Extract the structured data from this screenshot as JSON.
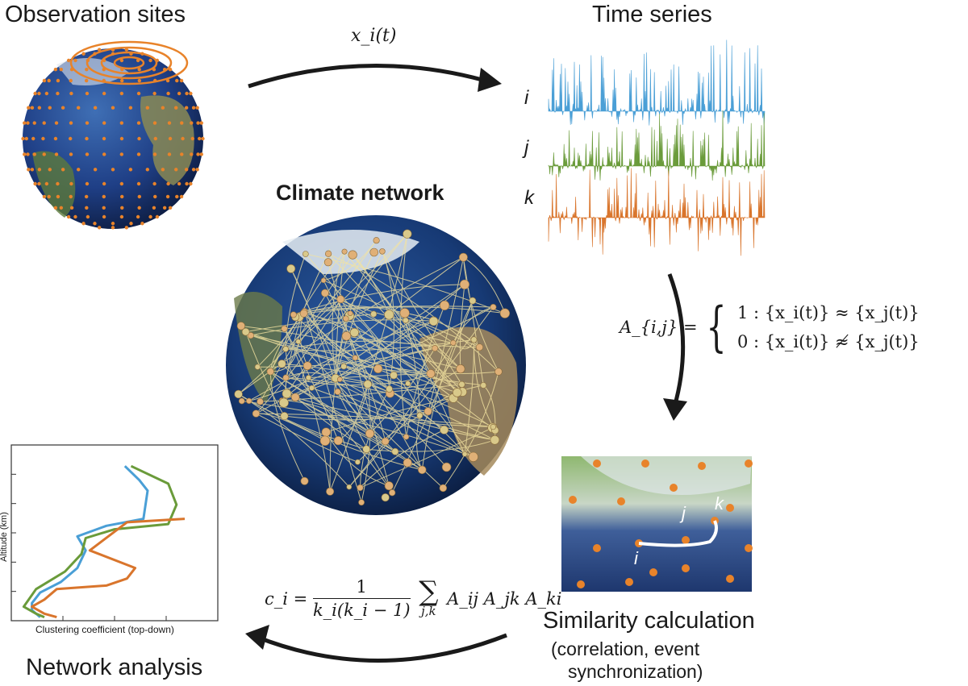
{
  "labels": {
    "observation_sites": "Observation sites",
    "time_series": "Time series",
    "climate_network": "Climate network",
    "similarity_calculation": "Similarity calculation",
    "similarity_methods_line1": "(correlation, event",
    "similarity_methods_line2": "synchronization)",
    "network_analysis": "Network analysis"
  },
  "series_labels": [
    "i",
    "j",
    "k"
  ],
  "map_labels": [
    "i",
    "j",
    "k"
  ],
  "equations": {
    "xi_t": "x_i(t)",
    "adjacency": {
      "lhs": "A_{i,j} =",
      "case1": "1 : {x_i(t)} ≈ {x_j(t)}",
      "case0": "0 : {x_i(t)} ≉ {x_j(t)}"
    },
    "clustering": {
      "lhs": "c_i =",
      "numerator": "1",
      "denominator": "k_i(k_i − 1)",
      "sum_index": "j,k",
      "term": "A_ij A_jk A_ki"
    }
  },
  "plot": {
    "ylabel": "Altitude (km)",
    "xlabel": "Clustering coefficient (top-down)"
  },
  "colors": {
    "blue": "#4a9fd6",
    "green": "#6a9b3a",
    "orange": "#d9752c",
    "arrow": "#1a1a1a",
    "site_dot": "#e8832a"
  },
  "chart_data": {
    "type": "line",
    "xlabel": "Clustering coefficient (top-down)",
    "ylabel": "Altitude (km)",
    "series": [
      {
        "color": "#4a9fd6",
        "x": [
          0.55,
          0.62,
          0.66,
          0.64,
          0.46,
          0.32,
          0.36,
          0.32,
          0.24,
          0.14,
          0.1,
          0.1,
          0.14
        ],
        "y": [
          0.88,
          0.8,
          0.74,
          0.58,
          0.54,
          0.48,
          0.4,
          0.3,
          0.22,
          0.16,
          0.1,
          0.06,
          0.02
        ]
      },
      {
        "color": "#6a9b3a",
        "x": [
          0.58,
          0.76,
          0.8,
          0.76,
          0.5,
          0.36,
          0.34,
          0.26,
          0.12,
          0.06,
          0.12,
          0.16
        ],
        "y": [
          0.88,
          0.78,
          0.66,
          0.55,
          0.52,
          0.47,
          0.38,
          0.28,
          0.18,
          0.08,
          0.04,
          0.02
        ]
      },
      {
        "color": "#d9752c",
        "x": [
          0.84,
          0.56,
          0.38,
          0.6,
          0.56,
          0.46,
          0.22,
          0.16,
          0.1,
          0.16,
          0.22
        ],
        "y": [
          0.58,
          0.56,
          0.4,
          0.3,
          0.24,
          0.2,
          0.18,
          0.12,
          0.08,
          0.04,
          0.02
        ]
      }
    ]
  }
}
